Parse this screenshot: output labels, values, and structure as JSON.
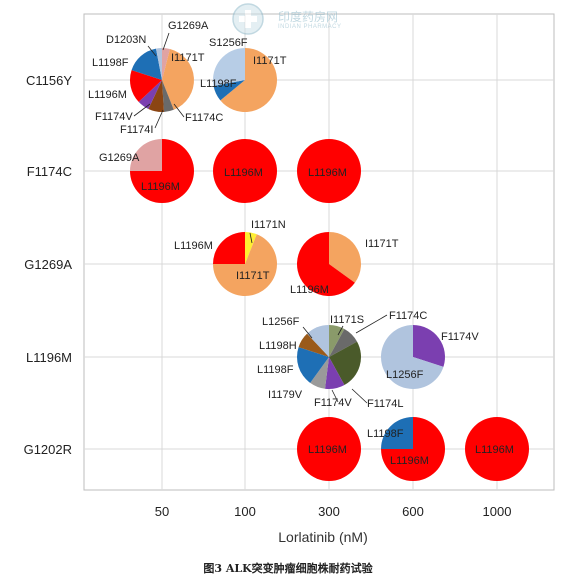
{
  "watermark": {
    "text": "印度药房网",
    "sub": "INDIAN PHARMACY"
  },
  "caption": "图3 ALK突变肿瘤细胞株耐药试验",
  "chart_data": {
    "type": "pie-grid",
    "xlabel": "Lorlatinib (nM)",
    "ylabel": "",
    "x_categories": [
      "50",
      "100",
      "300",
      "600",
      "1000"
    ],
    "y_categories": [
      "C1156Y",
      "F1174C",
      "G1269A",
      "L1196M",
      "G1202R"
    ],
    "grid": true,
    "colors": {
      "L1196M": "#ff0000",
      "I1171T": "#f4a460",
      "L1198F": "#1e6fb5",
      "G1269A": "#e0a3a3",
      "D1203N": "#b0c4de",
      "S1256F": "#b7cde6",
      "F1174V": "#7b3fb0",
      "F1174C": "#6a6a6a",
      "F1174I": "#8b4513",
      "I1171N": "#ffee33",
      "L1256F": "#b0c4de",
      "I1171S": "#8a9a6a",
      "L1198H": "#9a5a1a",
      "I1179V": "#9a9a9a",
      "F1174L": "#4a5a2a"
    },
    "pies": [
      {
        "row": "C1156Y",
        "col": "50",
        "slices": [
          {
            "label": "G1269A",
            "value": 4
          },
          {
            "label": "I1171T",
            "value": 40
          },
          {
            "label": "F1174C",
            "value": 5
          },
          {
            "label": "F1174I",
            "value": 8
          },
          {
            "label": "F1174V",
            "value": 6
          },
          {
            "label": "L1196M",
            "value": 17
          },
          {
            "label": "L1198F",
            "value": 17
          },
          {
            "label": "D1203N",
            "value": 3
          }
        ]
      },
      {
        "row": "C1156Y",
        "col": "100",
        "slices": [
          {
            "label": "I1171T",
            "value": 64
          },
          {
            "label": "L1198F",
            "value": 8
          },
          {
            "label": "S1256F",
            "value": 28
          }
        ]
      },
      {
        "row": "F1174C",
        "col": "50",
        "slices": [
          {
            "label": "L1196M",
            "value": 75
          },
          {
            "label": "G1269A",
            "value": 25
          }
        ]
      },
      {
        "row": "F1174C",
        "col": "100",
        "slices": [
          {
            "label": "L1196M",
            "value": 100
          }
        ]
      },
      {
        "row": "F1174C",
        "col": "300",
        "slices": [
          {
            "label": "L1196M",
            "value": 100
          }
        ]
      },
      {
        "row": "G1269A",
        "col": "100",
        "slices": [
          {
            "label": "I1171N",
            "value": 6
          },
          {
            "label": "I1171T",
            "value": 69
          },
          {
            "label": "L1196M",
            "value": 25
          }
        ]
      },
      {
        "row": "G1269A",
        "col": "300",
        "slices": [
          {
            "label": "I1171T",
            "value": 35
          },
          {
            "label": "L1196M",
            "value": 65
          }
        ]
      },
      {
        "row": "L1196M",
        "col": "300",
        "slices": [
          {
            "label": "I1171S",
            "value": 8
          },
          {
            "label": "F1174C",
            "value": 9
          },
          {
            "label": "F1174L",
            "value": 25
          },
          {
            "label": "F1174V",
            "value": 10
          },
          {
            "label": "I1179V",
            "value": 8
          },
          {
            "label": "L1198F",
            "value": 20
          },
          {
            "label": "L1198H",
            "value": 8
          },
          {
            "label": "L1256F",
            "value": 12
          }
        ]
      },
      {
        "row": "L1196M",
        "col": "600",
        "slices": [
          {
            "label": "F1174V",
            "value": 30
          },
          {
            "label": "L1256F",
            "value": 70
          }
        ]
      },
      {
        "row": "G1202R",
        "col": "300",
        "slices": [
          {
            "label": "L1196M",
            "value": 100
          }
        ]
      },
      {
        "row": "G1202R",
        "col": "600",
        "slices": [
          {
            "label": "L1196M",
            "value": 75
          },
          {
            "label": "L1198F",
            "value": 25
          }
        ]
      },
      {
        "row": "G1202R",
        "col": "1000",
        "slices": [
          {
            "label": "L1196M",
            "value": 100
          }
        ]
      }
    ]
  }
}
